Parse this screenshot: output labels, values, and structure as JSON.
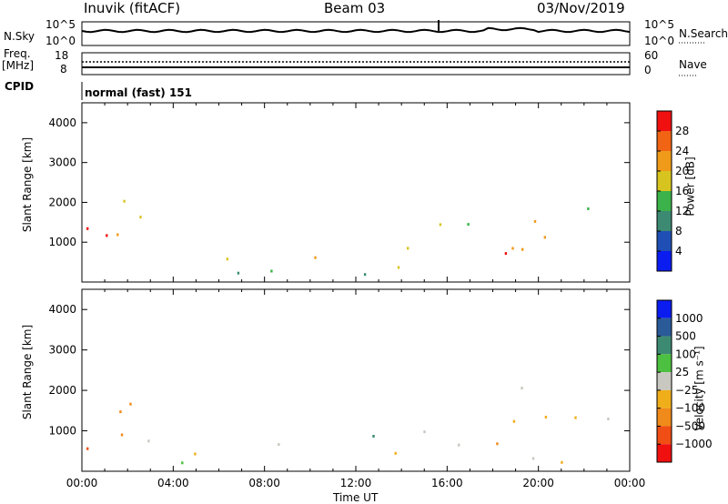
{
  "header": {
    "station": "Inuvik (fitACF)",
    "beam": "Beam 03",
    "date": "03/Nov/2019"
  },
  "strip_labels": {
    "nsky": "N.Sky",
    "nsky_ticks": [
      "10^5",
      "10^0"
    ],
    "nsearch": "N.Search",
    "nsearch_ticks": [
      "10^5",
      "10^0"
    ],
    "freq_top": "Freq.",
    "freq_unit": "[MHz]",
    "freq_ticks": [
      "18",
      "8"
    ],
    "nave": "Nave",
    "nave_ticks": [
      "60",
      "0"
    ],
    "cpid": "CPID",
    "cpid_value": "normal (fast) 151"
  },
  "colors": {
    "power_scale": [
      "#0a1cf0",
      "#1f4fb4",
      "#3d8a73",
      "#3cb34a",
      "#d8c41e",
      "#f09a1a",
      "#f06414",
      "#f01010"
    ],
    "velocity_scale": [
      "#f01010",
      "#f04e14",
      "#f08a1a",
      "#f0ae1a",
      "#c8c8c0",
      "#4cc040",
      "#3d8a73",
      "#2a5a98",
      "#0a1cf0"
    ]
  },
  "chart_data": [
    {
      "type": "heatmap",
      "name": "power",
      "ylabel": "Slant Range [km]",
      "xlabel": "",
      "yticks": [
        "4000",
        "3000",
        "2000",
        "1000"
      ],
      "ylim": [
        0,
        4500
      ],
      "xlim_hours": [
        0,
        24
      ],
      "colorbar_label": "Power [dB]",
      "colorbar_ticks": [
        "28",
        "24",
        "20",
        "16",
        "12",
        "8",
        "4"
      ],
      "colorbar_range": [
        0,
        32
      ]
    },
    {
      "type": "heatmap",
      "name": "velocity",
      "ylabel": "Slant Range [km]",
      "xlabel": "Time UT",
      "yticks": [
        "4000",
        "3000",
        "2000",
        "1000"
      ],
      "ylim": [
        0,
        4500
      ],
      "xlim_hours": [
        0,
        24
      ],
      "xticks": [
        "00:00",
        "04:00",
        "08:00",
        "12:00",
        "16:00",
        "20:00",
        "00:00"
      ],
      "colorbar_label": "Velocity [m s⁻¹]",
      "colorbar_ticks": [
        "1000",
        "500",
        "100",
        "25",
        "−25",
        "−100",
        "−500",
        "−1000"
      ]
    }
  ]
}
